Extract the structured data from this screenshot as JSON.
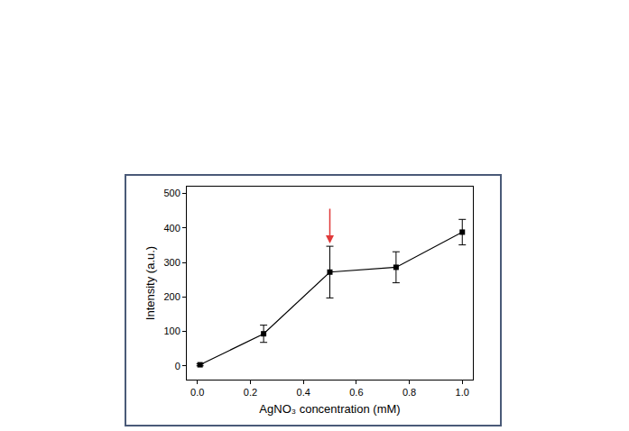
{
  "chart_data": {
    "type": "line",
    "x_label": "AgNO₃ concentration (mM)",
    "y_label": "Intensity (a.u.)",
    "x": [
      0.01,
      0.25,
      0.5,
      0.75,
      1.0
    ],
    "values": [
      3,
      93,
      272,
      286,
      388
    ],
    "error": [
      3,
      25,
      75,
      45,
      37
    ],
    "color": "#000000",
    "marker": "square",
    "line_style": "solid",
    "xlim": [
      -0.04,
      1.04
    ],
    "xticks": [
      {
        "value": 0,
        "label": "0.0"
      },
      0.2,
      0.4,
      0.6,
      0.8,
      {
        "value": 1,
        "label": "1.0"
      }
    ],
    "ylim": [
      -40,
      520
    ],
    "yticks": [
      0,
      100,
      200,
      300,
      400,
      500
    ],
    "grid": false,
    "arrow": {
      "x": 0.5,
      "y_from": 460,
      "y_to": 355,
      "color": "#e03a3a"
    }
  }
}
